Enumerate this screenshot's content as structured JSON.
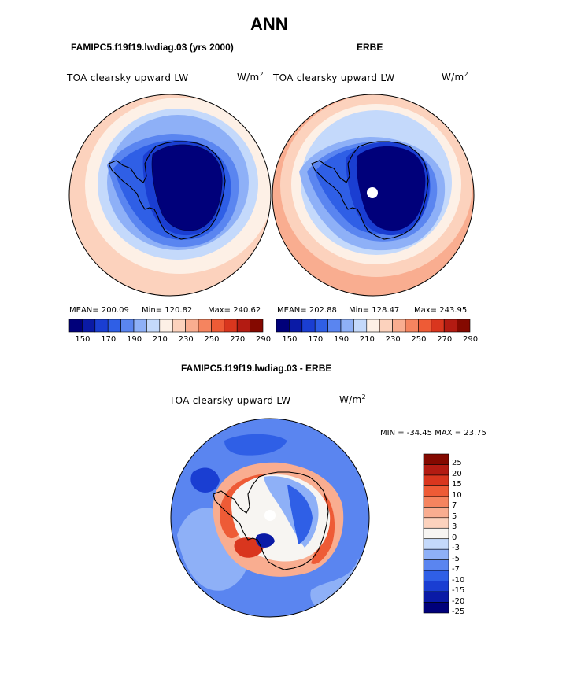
{
  "figure": {
    "title": "ANN",
    "diff_title": "FAMIPC5.f19f19.lwdiag.03 - ERBE"
  },
  "palettes": {
    "abs": [
      "#00007a",
      "#0a1aa6",
      "#1a3ed2",
      "#2f5fe6",
      "#5a85f0",
      "#8eb0f7",
      "#c4d9fb",
      "#fdf0e6",
      "#fcd2bd",
      "#f9ad90",
      "#f5845f",
      "#ee5b36",
      "#d9361e",
      "#b31b12",
      "#840900"
    ],
    "diff": [
      "#00007a",
      "#0a1aa6",
      "#1a3ed2",
      "#2f5fe6",
      "#5a85f0",
      "#8eb0f7",
      "#c4d9fb",
      "#f7f5f2",
      "#fcd2bd",
      "#f9ad90",
      "#f5845f",
      "#ee5b36",
      "#d9361e",
      "#b31b12",
      "#840900"
    ]
  },
  "panels": [
    {
      "id": "model",
      "title": "FAMIPC5.f19f19.lwdiag.03 (yrs 2000)",
      "variable": "TOA clearsky upward LW",
      "units_base": "W/m",
      "units_exp": "2",
      "stats": {
        "mean": "MEAN= 200.09",
        "min": "Min= 120.82",
        "max": "Max= 240.62"
      },
      "colorbar_ticks": [
        "150",
        "170",
        "190",
        "210",
        "230",
        "250",
        "270",
        "290"
      ],
      "pole_hole": false
    },
    {
      "id": "obs",
      "title": "ERBE",
      "variable": "TOA clearsky upward LW",
      "units_base": "W/m",
      "units_exp": "2",
      "stats": {
        "mean": "MEAN= 202.88",
        "min": "Min= 128.47",
        "max": "Max= 243.95"
      },
      "colorbar_ticks": [
        "150",
        "170",
        "190",
        "210",
        "230",
        "250",
        "270",
        "290"
      ],
      "pole_hole": true
    },
    {
      "id": "diff",
      "variable": "TOA clearsky upward LW",
      "units_base": "W/m",
      "units_exp": "2",
      "stats": {
        "minmax": "MIN = -34.45 MAX =  23.75"
      },
      "colorbar_ticks": [
        "25",
        "20",
        "15",
        "10",
        "7",
        "5",
        "3",
        "0",
        "-3",
        "-5",
        "-7",
        "-10",
        "-15",
        "-20",
        "-25"
      ],
      "pole_hole": true
    }
  ]
}
